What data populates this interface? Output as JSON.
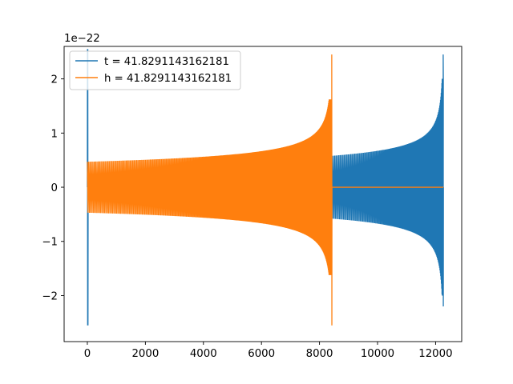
{
  "chart_data": {
    "type": "line",
    "title": "",
    "xlabel": "",
    "ylabel": "",
    "y_multiplier": "1e−22",
    "xlim": [
      -800,
      12900
    ],
    "ylim": [
      -2.85,
      2.6
    ],
    "xticks": [
      0,
      2000,
      4000,
      6000,
      8000,
      10000,
      12000
    ],
    "xtick_labels": [
      "0",
      "2000",
      "4000",
      "6000",
      "8000",
      "10000",
      "12000"
    ],
    "yticks": [
      -2,
      -1,
      0,
      1,
      2
    ],
    "ytick_labels": [
      "−2",
      "−1",
      "0",
      "1",
      "2"
    ],
    "grid": false,
    "legend_position": "upper-left",
    "series": [
      {
        "name": "t = 41.8291143162181",
        "color": "#1f77b4",
        "x_start": 0,
        "x_end": 12270,
        "segments": [
          {
            "x_start": 0,
            "x_end": 150,
            "kind": "chirp-end",
            "amp_max": 2.55,
            "amp_min": -2.55
          },
          {
            "x_start": 150,
            "x_end": 8430,
            "kind": "flat",
            "value": 0
          },
          {
            "x_start": 8430,
            "x_end": 12270,
            "kind": "chirp",
            "amp_start": 0.58,
            "amp_end_top": 2.45,
            "amp_end_bottom": -2.2
          }
        ]
      },
      {
        "name": "h = 41.8291143162181",
        "color": "#ff7f0e",
        "x_start": 0,
        "x_end": 12270,
        "segments": [
          {
            "x_start": 0,
            "x_end": 8430,
            "kind": "chirp",
            "amp_start": 0.47,
            "amp_end_top": 2.45,
            "amp_end_bottom": -2.55
          },
          {
            "x_start": 8430,
            "x_end": 12270,
            "kind": "flat",
            "value": 0
          }
        ]
      }
    ]
  }
}
